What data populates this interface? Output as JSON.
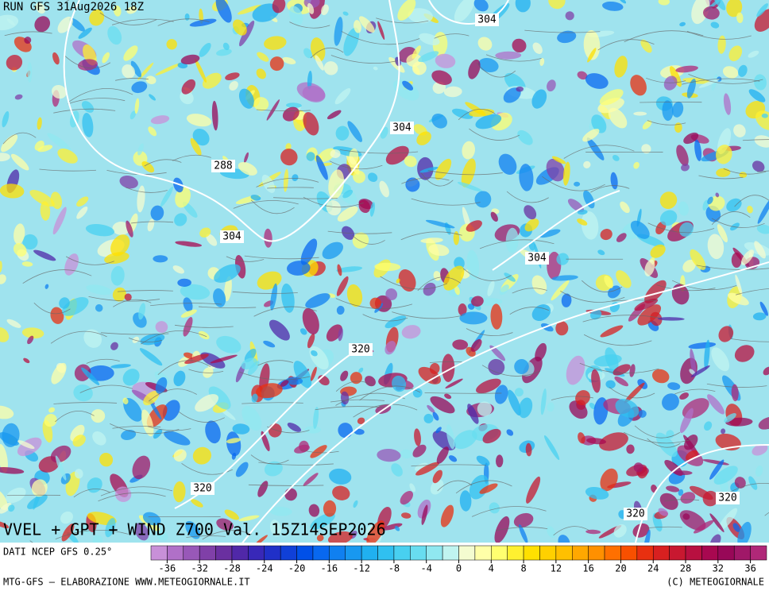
{
  "header": {
    "run": "RUN GFS 31Aug2026 18Z"
  },
  "map": {
    "title": "VVEL + GPT + WIND Z700 Val. 15Z14SEP2026",
    "contour_labels": [
      "304",
      "304",
      "288",
      "304",
      "304",
      "320",
      "320",
      "320",
      "320"
    ]
  },
  "colorbar": {
    "source": "DATI NCEP GFS 0.25°",
    "ticks": [
      -36,
      -32,
      -28,
      -24,
      -20,
      -16,
      -12,
      -8,
      -4,
      0,
      4,
      8,
      12,
      16,
      20,
      24,
      28,
      32,
      36
    ],
    "range": [
      -38,
      38
    ],
    "colors": [
      "#c890d8",
      "#b070c8",
      "#9858b8",
      "#8040a8",
      "#6a30a0",
      "#5028a8",
      "#3828b8",
      "#2030c8",
      "#1040d8",
      "#0050e8",
      "#0868f0",
      "#1080f0",
      "#1898f0",
      "#20b0f0",
      "#30c0f0",
      "#48d0f0",
      "#68ddf0",
      "#90e8f0",
      "#c0f4f0",
      "#f4fcd0",
      "#ffffa8",
      "#ffff70",
      "#fff030",
      "#ffe000",
      "#ffd000",
      "#ffc000",
      "#ffa800",
      "#ff9000",
      "#ff7000",
      "#f85000",
      "#e83010",
      "#d82020",
      "#c81830",
      "#b81040",
      "#a80850",
      "#980858",
      "#a01868",
      "#b02878"
    ]
  },
  "footer": {
    "left": "MTG-GFS — ELABORAZIONE WWW.METEOGIORNALE.IT",
    "right": "(C) METEOGIORNALE"
  }
}
